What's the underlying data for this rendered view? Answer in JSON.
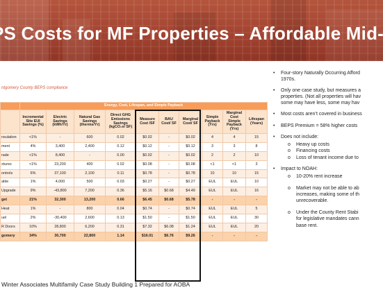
{
  "slide": {
    "title": "PS Costs for MF Properties – Affordable Mid-Ris",
    "colors": {
      "banner": "#a34431",
      "table_header": "#f79c5a",
      "table_subheader": "#fbe3cc",
      "caption": "#d2583c"
    }
  },
  "table": {
    "caption": "ntgomery County BEPS compliance",
    "group_header": "Energy, Cost, Lifespan, and Simple Payback",
    "columns": [
      "",
      "Incremental Site EUI Savings (%)",
      "Electric Savings (kWh/Yr)",
      "Natural Gas Savings (therms/Yr)",
      "Direct GHG Emissions Savings (kgCO₂e/ SF)",
      "Measure Cost /SF",
      "BAU Cost/ SF",
      "Marginal Cost/ SF",
      "Simple Payback (Yrs)",
      "Marginal Cost Simple Payback (Yrs)",
      "Lifespan (Years)"
    ],
    "rows": [
      {
        "cells": [
          "nsulation",
          "<1%",
          "-",
          "600",
          "0.02",
          "$0.02",
          "-",
          "$0.02",
          "4",
          "4",
          "15"
        ],
        "highlight": false
      },
      {
        "cells": [
          "ment",
          "4%",
          "3,400",
          "2,400",
          "0.12",
          "$0.12",
          "-",
          "$0.12",
          "3",
          "3",
          "8"
        ],
        "highlight": false
      },
      {
        "cells": [
          "rade",
          "<1%",
          "8,400",
          "-",
          "0.00",
          "$0.02",
          "-",
          "$0.02",
          "2",
          "2",
          "10"
        ],
        "highlight": false
      },
      {
        "cells": [
          "xtures",
          "<1%",
          "23,200",
          "400",
          "0.02",
          "$0.08",
          "-",
          "$0.08",
          "<1",
          "<1",
          "3"
        ],
        "highlight": false
      },
      {
        "cells": [
          "ontrols",
          "6%",
          "37,100",
          "2,100",
          "0.11",
          "$0.78",
          "-",
          "$0.78",
          "10",
          "10",
          "15"
        ],
        "highlight": false
      },
      {
        "cells": [
          "able",
          "1%",
          "4,000",
          "500",
          "0.03",
          "$0.27",
          "-",
          "$0.27",
          "EUL",
          "EUL",
          "10"
        ],
        "highlight": false
      },
      {
        "cells": [
          "Upgrade",
          "9%",
          "-43,800",
          "7,200",
          "0.36",
          "$5.16",
          "$0.68",
          "$4.49",
          "EUL",
          "EUL",
          "16"
        ],
        "highlight": false
      },
      {
        "cells": [
          "get",
          "21%",
          "32,300",
          "13,200",
          "0.66",
          "$6.45",
          "$0.68",
          "$5.78",
          "-",
          "-",
          "-"
        ],
        "highlight": true
      },
      {
        "cells": [
          "Heat",
          "1%",
          "-",
          "800",
          "0.04",
          "$0.74",
          "-",
          "$0.74",
          "EUL",
          "EUL",
          "5"
        ],
        "highlight": false
      },
      {
        "cells": [
          "uel",
          "2%",
          "-30,400",
          "2,600",
          "0.13",
          "$1.50",
          "-",
          "$1.50",
          "EUL",
          "EUL",
          "30"
        ],
        "highlight": false
      },
      {
        "cells": [
          "R Doors",
          "10%",
          "28,800",
          "6,200",
          "0.31",
          "$7.32",
          "$6.08",
          "$1.24",
          "EUL",
          "EUL",
          "20"
        ],
        "highlight": false
      },
      {
        "cells": [
          "gomery",
          "34%",
          "30,700",
          "22,800",
          "1.14",
          "$16.01",
          "$6.76",
          "$9.26",
          "-",
          "-",
          "-"
        ],
        "highlight": true
      }
    ]
  },
  "bullets": [
    {
      "text": "Four-story Naturally Occurring Afford",
      "cont": "1970s.",
      "subs": []
    },
    {
      "text": "Only one case study, but measures a",
      "cont": "properties. (Not all properties will hav",
      "cont2": "some may have less, some may hav",
      "subs": []
    },
    {
      "text": "Most costs aren’t covered in business",
      "subs": []
    },
    {
      "text": "BEPS Premium = 58% higher costs",
      "subs": []
    },
    {
      "text": "Does not include:",
      "subs": [
        {
          "text": "Heavy up costs"
        },
        {
          "text": "Financing costs"
        },
        {
          "text": "Loss of tenant income due to"
        }
      ]
    },
    {
      "text": "Impact to NOAH:",
      "subs": [
        {
          "text": "10-20% rent increase"
        },
        {
          "text": "Market may not be able to ab",
          "cont": "increases, making some of th",
          "cont2": "unrecoverable."
        },
        {
          "text": "Under the County Rent Stabi",
          "cont": "for legislative mandates cann",
          "cont2": "base rent."
        }
      ]
    }
  ],
  "footer": "Winter Associates Multifamily Case Study Building 1 Prepared for AOBA"
}
